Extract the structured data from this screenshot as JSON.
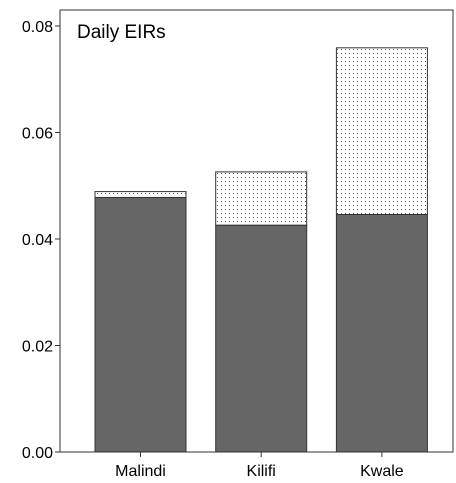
{
  "chart_data": {
    "type": "bar",
    "stacked": true,
    "title": "Daily EIRs",
    "xlabel": "",
    "ylabel": "",
    "categories": [
      "Malindi",
      "Kilifi",
      "Kwale"
    ],
    "series": [
      {
        "values": [
          0.0478,
          0.0426,
          0.0446
        ],
        "color": "#666666",
        "pattern": "solid"
      },
      {
        "values": [
          0.0011,
          0.01,
          0.0313
        ],
        "color": "#ffffff",
        "pattern": "dotted"
      }
    ],
    "totals": [
      0.0489,
      0.0526,
      0.0759
    ],
    "ylim": [
      0,
      0.083
    ],
    "yticks": [
      {
        "value": 0.0,
        "label": "0.00"
      },
      {
        "value": 0.02,
        "label": "0.02"
      },
      {
        "value": 0.04,
        "label": "0.04"
      },
      {
        "value": 0.06,
        "label": "0.06"
      },
      {
        "value": 0.08,
        "label": "0.08"
      }
    ],
    "grid": false,
    "legend": "none"
  }
}
